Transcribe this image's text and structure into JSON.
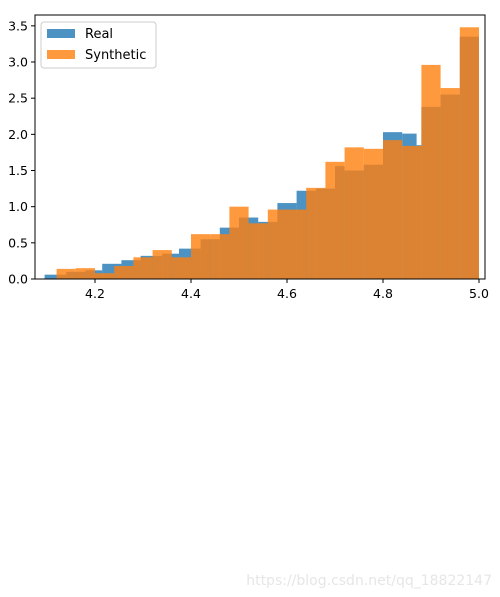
{
  "chart_data": {
    "type": "histogram",
    "title": "",
    "xlabel": "",
    "ylabel": "",
    "xlim": [
      4.075,
      5.0125
    ],
    "ylim": [
      0,
      3.65
    ],
    "xticks": [
      4.2,
      4.4,
      4.6,
      4.8,
      5.0
    ],
    "xtick_labels": [
      "4.2",
      "4.4",
      "4.6",
      "4.8",
      "5.0"
    ],
    "yticks": [
      0.0,
      0.5,
      1.0,
      1.5,
      2.0,
      2.5,
      3.0,
      3.5
    ],
    "ytick_labels": [
      "0.0",
      "0.5",
      "1.0",
      "1.5",
      "2.0",
      "2.5",
      "3.0",
      "3.5"
    ],
    "legend_position": "top-left",
    "grid": false,
    "series": [
      {
        "name": "Real",
        "color": "#1f77b4",
        "alpha": 0.8,
        "bins": [
          {
            "x0": 4.095,
            "x1": 4.14,
            "y": 0.06
          },
          {
            "x0": 4.14,
            "x1": 4.18,
            "y": 0.1
          },
          {
            "x0": 4.18,
            "x1": 4.215,
            "y": 0.12
          },
          {
            "x0": 4.215,
            "x1": 4.255,
            "y": 0.21
          },
          {
            "x0": 4.255,
            "x1": 4.295,
            "y": 0.26
          },
          {
            "x0": 4.295,
            "x1": 4.34,
            "y": 0.32
          },
          {
            "x0": 4.34,
            "x1": 4.375,
            "y": 0.35
          },
          {
            "x0": 4.375,
            "x1": 4.42,
            "y": 0.42
          },
          {
            "x0": 4.42,
            "x1": 4.46,
            "y": 0.55
          },
          {
            "x0": 4.46,
            "x1": 4.5,
            "y": 0.71
          },
          {
            "x0": 4.5,
            "x1": 4.54,
            "y": 0.85
          },
          {
            "x0": 4.54,
            "x1": 4.58,
            "y": 0.79
          },
          {
            "x0": 4.58,
            "x1": 4.62,
            "y": 1.05
          },
          {
            "x0": 4.62,
            "x1": 4.66,
            "y": 1.22
          },
          {
            "x0": 4.66,
            "x1": 4.7,
            "y": 1.25
          },
          {
            "x0": 4.7,
            "x1": 4.72,
            "y": 1.56
          },
          {
            "x0": 4.72,
            "x1": 4.76,
            "y": 1.5
          },
          {
            "x0": 4.76,
            "x1": 4.8,
            "y": 1.58
          },
          {
            "x0": 4.8,
            "x1": 4.84,
            "y": 2.03
          },
          {
            "x0": 4.84,
            "x1": 4.87,
            "y": 2.01
          },
          {
            "x0": 4.87,
            "x1": 4.88,
            "y": 1.85
          },
          {
            "x0": 4.88,
            "x1": 4.92,
            "y": 2.38
          },
          {
            "x0": 4.92,
            "x1": 4.96,
            "y": 2.55
          },
          {
            "x0": 4.96,
            "x1": 5.0,
            "y": 3.35
          }
        ]
      },
      {
        "name": "Synthetic",
        "color": "#ff7f0e",
        "alpha": 0.8,
        "bins": [
          {
            "x0": 4.12,
            "x1": 4.16,
            "y": 0.14
          },
          {
            "x0": 4.16,
            "x1": 4.2,
            "y": 0.15
          },
          {
            "x0": 4.2,
            "x1": 4.24,
            "y": 0.08
          },
          {
            "x0": 4.24,
            "x1": 4.28,
            "y": 0.18
          },
          {
            "x0": 4.28,
            "x1": 4.32,
            "y": 0.3
          },
          {
            "x0": 4.32,
            "x1": 4.36,
            "y": 0.4
          },
          {
            "x0": 4.36,
            "x1": 4.4,
            "y": 0.3
          },
          {
            "x0": 4.4,
            "x1": 4.44,
            "y": 0.62
          },
          {
            "x0": 4.44,
            "x1": 4.48,
            "y": 0.62
          },
          {
            "x0": 4.48,
            "x1": 4.52,
            "y": 1.0
          },
          {
            "x0": 4.52,
            "x1": 4.56,
            "y": 0.77
          },
          {
            "x0": 4.56,
            "x1": 4.6,
            "y": 0.96
          },
          {
            "x0": 4.6,
            "x1": 4.64,
            "y": 0.96
          },
          {
            "x0": 4.64,
            "x1": 4.68,
            "y": 1.26
          },
          {
            "x0": 4.68,
            "x1": 4.72,
            "y": 1.62
          },
          {
            "x0": 4.72,
            "x1": 4.76,
            "y": 1.82
          },
          {
            "x0": 4.76,
            "x1": 4.8,
            "y": 1.8
          },
          {
            "x0": 4.8,
            "x1": 4.84,
            "y": 1.92
          },
          {
            "x0": 4.84,
            "x1": 4.88,
            "y": 1.84
          },
          {
            "x0": 4.88,
            "x1": 4.92,
            "y": 2.96
          },
          {
            "x0": 4.92,
            "x1": 4.96,
            "y": 2.64
          },
          {
            "x0": 4.96,
            "x1": 5.0,
            "y": 3.48
          }
        ]
      }
    ]
  },
  "watermark": "https://blog.csdn.net/qq_18822147"
}
